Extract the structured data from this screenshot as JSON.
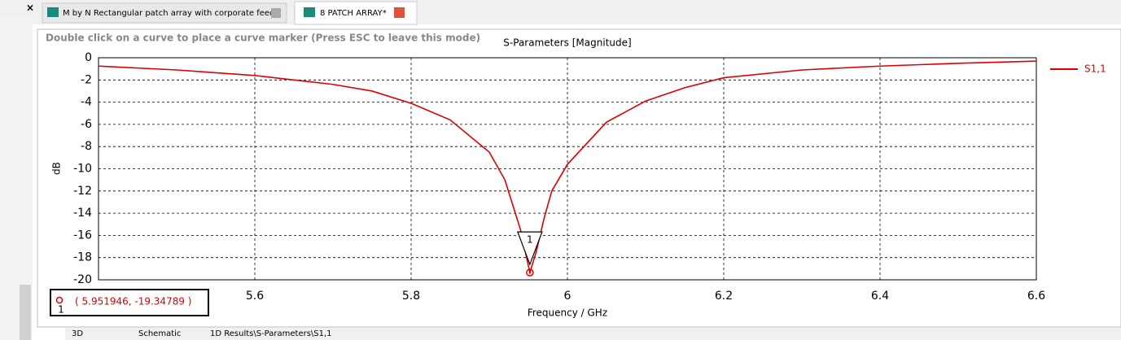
{
  "close_label": "×",
  "tabs": [
    "M by N Rectangular patch array with corporate feed",
    "8 PATCH ARRAY*"
  ],
  "hint": "Double click on a curve to place a curve marker (Press ESC to leave this mode)",
  "bottom_tabs": [
    "3D",
    "Schematic",
    "1D Results\\S-Parameters\\S1,1"
  ],
  "chart_data": {
    "type": "line",
    "title": "S-Parameters [Magnitude]",
    "x_label": "Frequency / GHz",
    "y_label": "dB",
    "x": [
      5.4,
      5.5,
      5.6,
      5.7,
      5.75,
      5.8,
      5.85,
      5.9,
      5.92,
      5.94,
      5.951946,
      5.96,
      5.97,
      5.98,
      6.0,
      6.05,
      6.1,
      6.15,
      6.2,
      6.3,
      6.4,
      6.5,
      6.6
    ],
    "series": [
      {
        "name": "S1,1",
        "color": "#dd0000",
        "values": [
          -0.75,
          -1.1,
          -1.6,
          -2.4,
          -3.0,
          -4.1,
          -5.6,
          -8.5,
          -11,
          -15.5,
          -19.34789,
          -17.5,
          -14.5,
          -12,
          -9.6,
          -5.8,
          -3.9,
          -2.7,
          -1.8,
          -1.1,
          -0.75,
          -0.5,
          -0.3
        ]
      }
    ],
    "xlim": [
      5.4,
      6.6
    ],
    "xticks": [
      5.6,
      5.8,
      6,
      6.2,
      6.4,
      6.6
    ],
    "ylim": [
      -20,
      0
    ],
    "yticks": [
      0,
      -2,
      -4,
      -6,
      -8,
      -10,
      -12,
      -14,
      -16,
      -18,
      -20
    ],
    "grid": true,
    "legend": "right",
    "marker": {
      "label": "1",
      "x": 5.951946,
      "y": -19.34789,
      "text": "( 5.951946, -19.34789 )"
    }
  }
}
